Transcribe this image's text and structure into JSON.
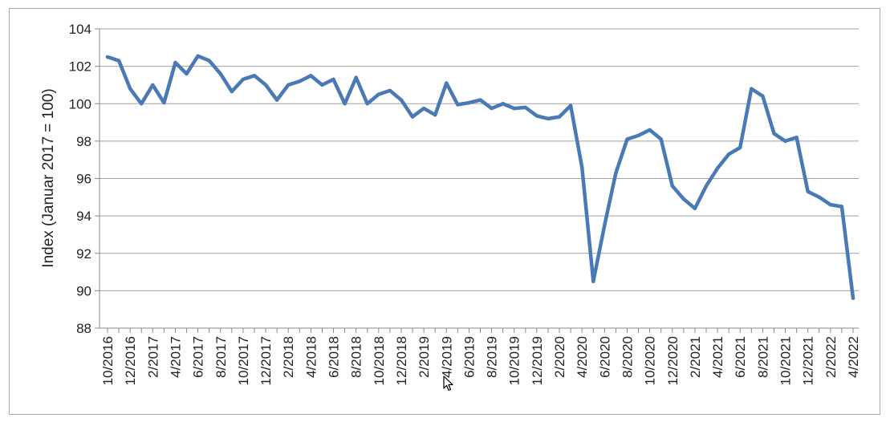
{
  "chart_data": {
    "type": "line",
    "title": "",
    "xlabel": "",
    "ylabel": "Index (Januar 2017 = 100)",
    "ylim": [
      88,
      104
    ],
    "yticks": [
      88,
      90,
      92,
      94,
      96,
      98,
      100,
      102,
      104
    ],
    "grid": "horizontal",
    "legend": "none",
    "line_color": "#4a7ab5",
    "x_tick_labels": [
      "10/2016",
      "12/2016",
      "2/2017",
      "4/2017",
      "6/2017",
      "8/2017",
      "10/2017",
      "12/2017",
      "2/2018",
      "4/2018",
      "6/2018",
      "8/2018",
      "10/2018",
      "12/2018",
      "2/2019",
      "4/2019",
      "6/2019",
      "8/2019",
      "10/2019",
      "12/2019",
      "2/2020",
      "4/2020",
      "6/2020",
      "8/2020",
      "10/2020",
      "12/2020",
      "2/2021",
      "4/2021",
      "6/2021",
      "8/2021",
      "10/2021",
      "12/2021",
      "2/2022",
      "4/2022"
    ],
    "x": [
      "10/2016",
      "11/2016",
      "12/2016",
      "1/2017",
      "2/2017",
      "3/2017",
      "4/2017",
      "5/2017",
      "6/2017",
      "7/2017",
      "8/2017",
      "9/2017",
      "10/2017",
      "11/2017",
      "12/2017",
      "1/2018",
      "2/2018",
      "3/2018",
      "4/2018",
      "5/2018",
      "6/2018",
      "7/2018",
      "8/2018",
      "9/2018",
      "10/2018",
      "11/2018",
      "12/2018",
      "1/2019",
      "2/2019",
      "3/2019",
      "4/2019",
      "5/2019",
      "6/2019",
      "7/2019",
      "8/2019",
      "9/2019",
      "10/2019",
      "11/2019",
      "12/2019",
      "1/2020",
      "2/2020",
      "3/2020",
      "4/2020",
      "5/2020",
      "6/2020",
      "7/2020",
      "8/2020",
      "9/2020",
      "10/2020",
      "11/2020",
      "12/2020",
      "1/2021",
      "2/2021",
      "3/2021",
      "4/2021",
      "5/2021",
      "6/2021",
      "7/2021",
      "8/2021",
      "9/2021",
      "10/2021",
      "11/2021",
      "12/2021",
      "1/2022",
      "2/2022",
      "3/2022",
      "4/2022"
    ],
    "series": [
      {
        "values": [
          102.5,
          102.3,
          100.8,
          100.0,
          101.0,
          100.05,
          102.2,
          101.6,
          102.55,
          102.3,
          101.6,
          100.65,
          101.3,
          101.5,
          101.0,
          100.2,
          101.0,
          101.2,
          101.5,
          101.0,
          101.3,
          100.0,
          101.4,
          100.0,
          100.5,
          100.7,
          100.2,
          99.3,
          99.75,
          99.4,
          101.1,
          99.95,
          100.05,
          100.2,
          99.75,
          100.0,
          99.75,
          99.8,
          99.35,
          99.2,
          99.3,
          99.9,
          96.6,
          90.5,
          93.5,
          96.3,
          98.1,
          98.3,
          98.6,
          98.1,
          95.6,
          94.9,
          94.4,
          95.6,
          96.55,
          97.3,
          97.65,
          100.8,
          100.4,
          98.4,
          98.0,
          98.2,
          95.3,
          95.0,
          94.6,
          94.5,
          89.6
        ]
      }
    ]
  }
}
